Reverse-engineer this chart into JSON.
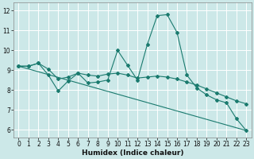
{
  "xlabel": "Humidex (Indice chaleur)",
  "bg_color": "#cce8e8",
  "line_color": "#1a7a6e",
  "grid_color": "#b0d8d8",
  "xlim": [
    -0.5,
    23.5
  ],
  "ylim": [
    5.6,
    12.4
  ],
  "yticks": [
    6,
    7,
    8,
    9,
    10,
    11,
    12
  ],
  "xticks": [
    0,
    1,
    2,
    3,
    4,
    5,
    6,
    7,
    8,
    9,
    10,
    11,
    12,
    13,
    14,
    15,
    16,
    17,
    18,
    19,
    20,
    21,
    22,
    23
  ],
  "line1_x": [
    0,
    1,
    2,
    3,
    4,
    5,
    6,
    7,
    8,
    9,
    10,
    11,
    12,
    13,
    14,
    15,
    16,
    17,
    18,
    19,
    20,
    21,
    22,
    23
  ],
  "line1_y": [
    9.2,
    9.2,
    9.35,
    8.75,
    7.95,
    8.45,
    8.85,
    8.35,
    8.4,
    8.5,
    10.0,
    9.25,
    8.5,
    10.3,
    11.75,
    11.8,
    10.9,
    8.75,
    8.1,
    7.75,
    7.5,
    7.35,
    6.55,
    5.95
  ],
  "line2_x": [
    0,
    1,
    2,
    3,
    4,
    5,
    6,
    7,
    8,
    9,
    10,
    11,
    12,
    13,
    14,
    15,
    16,
    17,
    18,
    19,
    20,
    21,
    22,
    23
  ],
  "line2_y": [
    9.2,
    9.2,
    9.35,
    9.05,
    8.55,
    8.65,
    8.85,
    8.75,
    8.7,
    8.8,
    8.85,
    8.75,
    8.6,
    8.65,
    8.7,
    8.65,
    8.55,
    8.4,
    8.25,
    8.05,
    7.85,
    7.65,
    7.45,
    7.3
  ],
  "line3_x": [
    0,
    23
  ],
  "line3_y": [
    9.2,
    5.95
  ]
}
